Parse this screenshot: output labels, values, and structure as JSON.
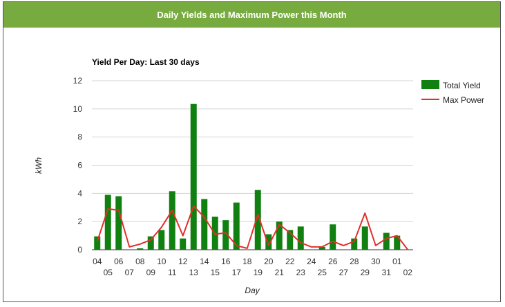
{
  "header": {
    "title": "Daily Yields and Maximum Power this Month"
  },
  "chart_data": {
    "type": "bar",
    "title": "Yield Per Day: Last 30 days",
    "xlabel": "Day",
    "ylabel": "kWh",
    "ylim": [
      0,
      12
    ],
    "yticks": [
      0,
      2,
      4,
      6,
      8,
      10,
      12
    ],
    "grid": true,
    "legend_position": "right",
    "categories": [
      "04",
      "05",
      "06",
      "07",
      "08",
      "09",
      "10",
      "11",
      "12",
      "13",
      "14",
      "15",
      "16",
      "17",
      "18",
      "19",
      "20",
      "21",
      "22",
      "23",
      "24",
      "25",
      "26",
      "27",
      "28",
      "29",
      "30",
      "31",
      "01",
      "02"
    ],
    "series": [
      {
        "name": "Total Yield",
        "type": "bar",
        "color": "#108010",
        "values": [
          0.95,
          3.9,
          3.8,
          0.0,
          0.1,
          0.95,
          1.4,
          4.15,
          0.8,
          10.35,
          3.6,
          2.35,
          2.1,
          3.35,
          0.0,
          4.25,
          1.1,
          2.0,
          1.4,
          1.65,
          0.0,
          0.2,
          1.8,
          0.0,
          0.8,
          1.65,
          0.0,
          1.2,
          1.0,
          0.0
        ]
      },
      {
        "name": "Max Power",
        "type": "line",
        "color": "#e0302a",
        "values": [
          0.6,
          2.9,
          2.8,
          0.2,
          0.4,
          0.7,
          1.6,
          2.8,
          1.0,
          3.1,
          2.3,
          1.1,
          1.2,
          0.3,
          0.1,
          2.5,
          0.3,
          1.8,
          1.2,
          0.5,
          0.2,
          0.2,
          0.6,
          0.3,
          0.6,
          2.6,
          0.3,
          0.8,
          1.0,
          0.0
        ]
      }
    ]
  }
}
